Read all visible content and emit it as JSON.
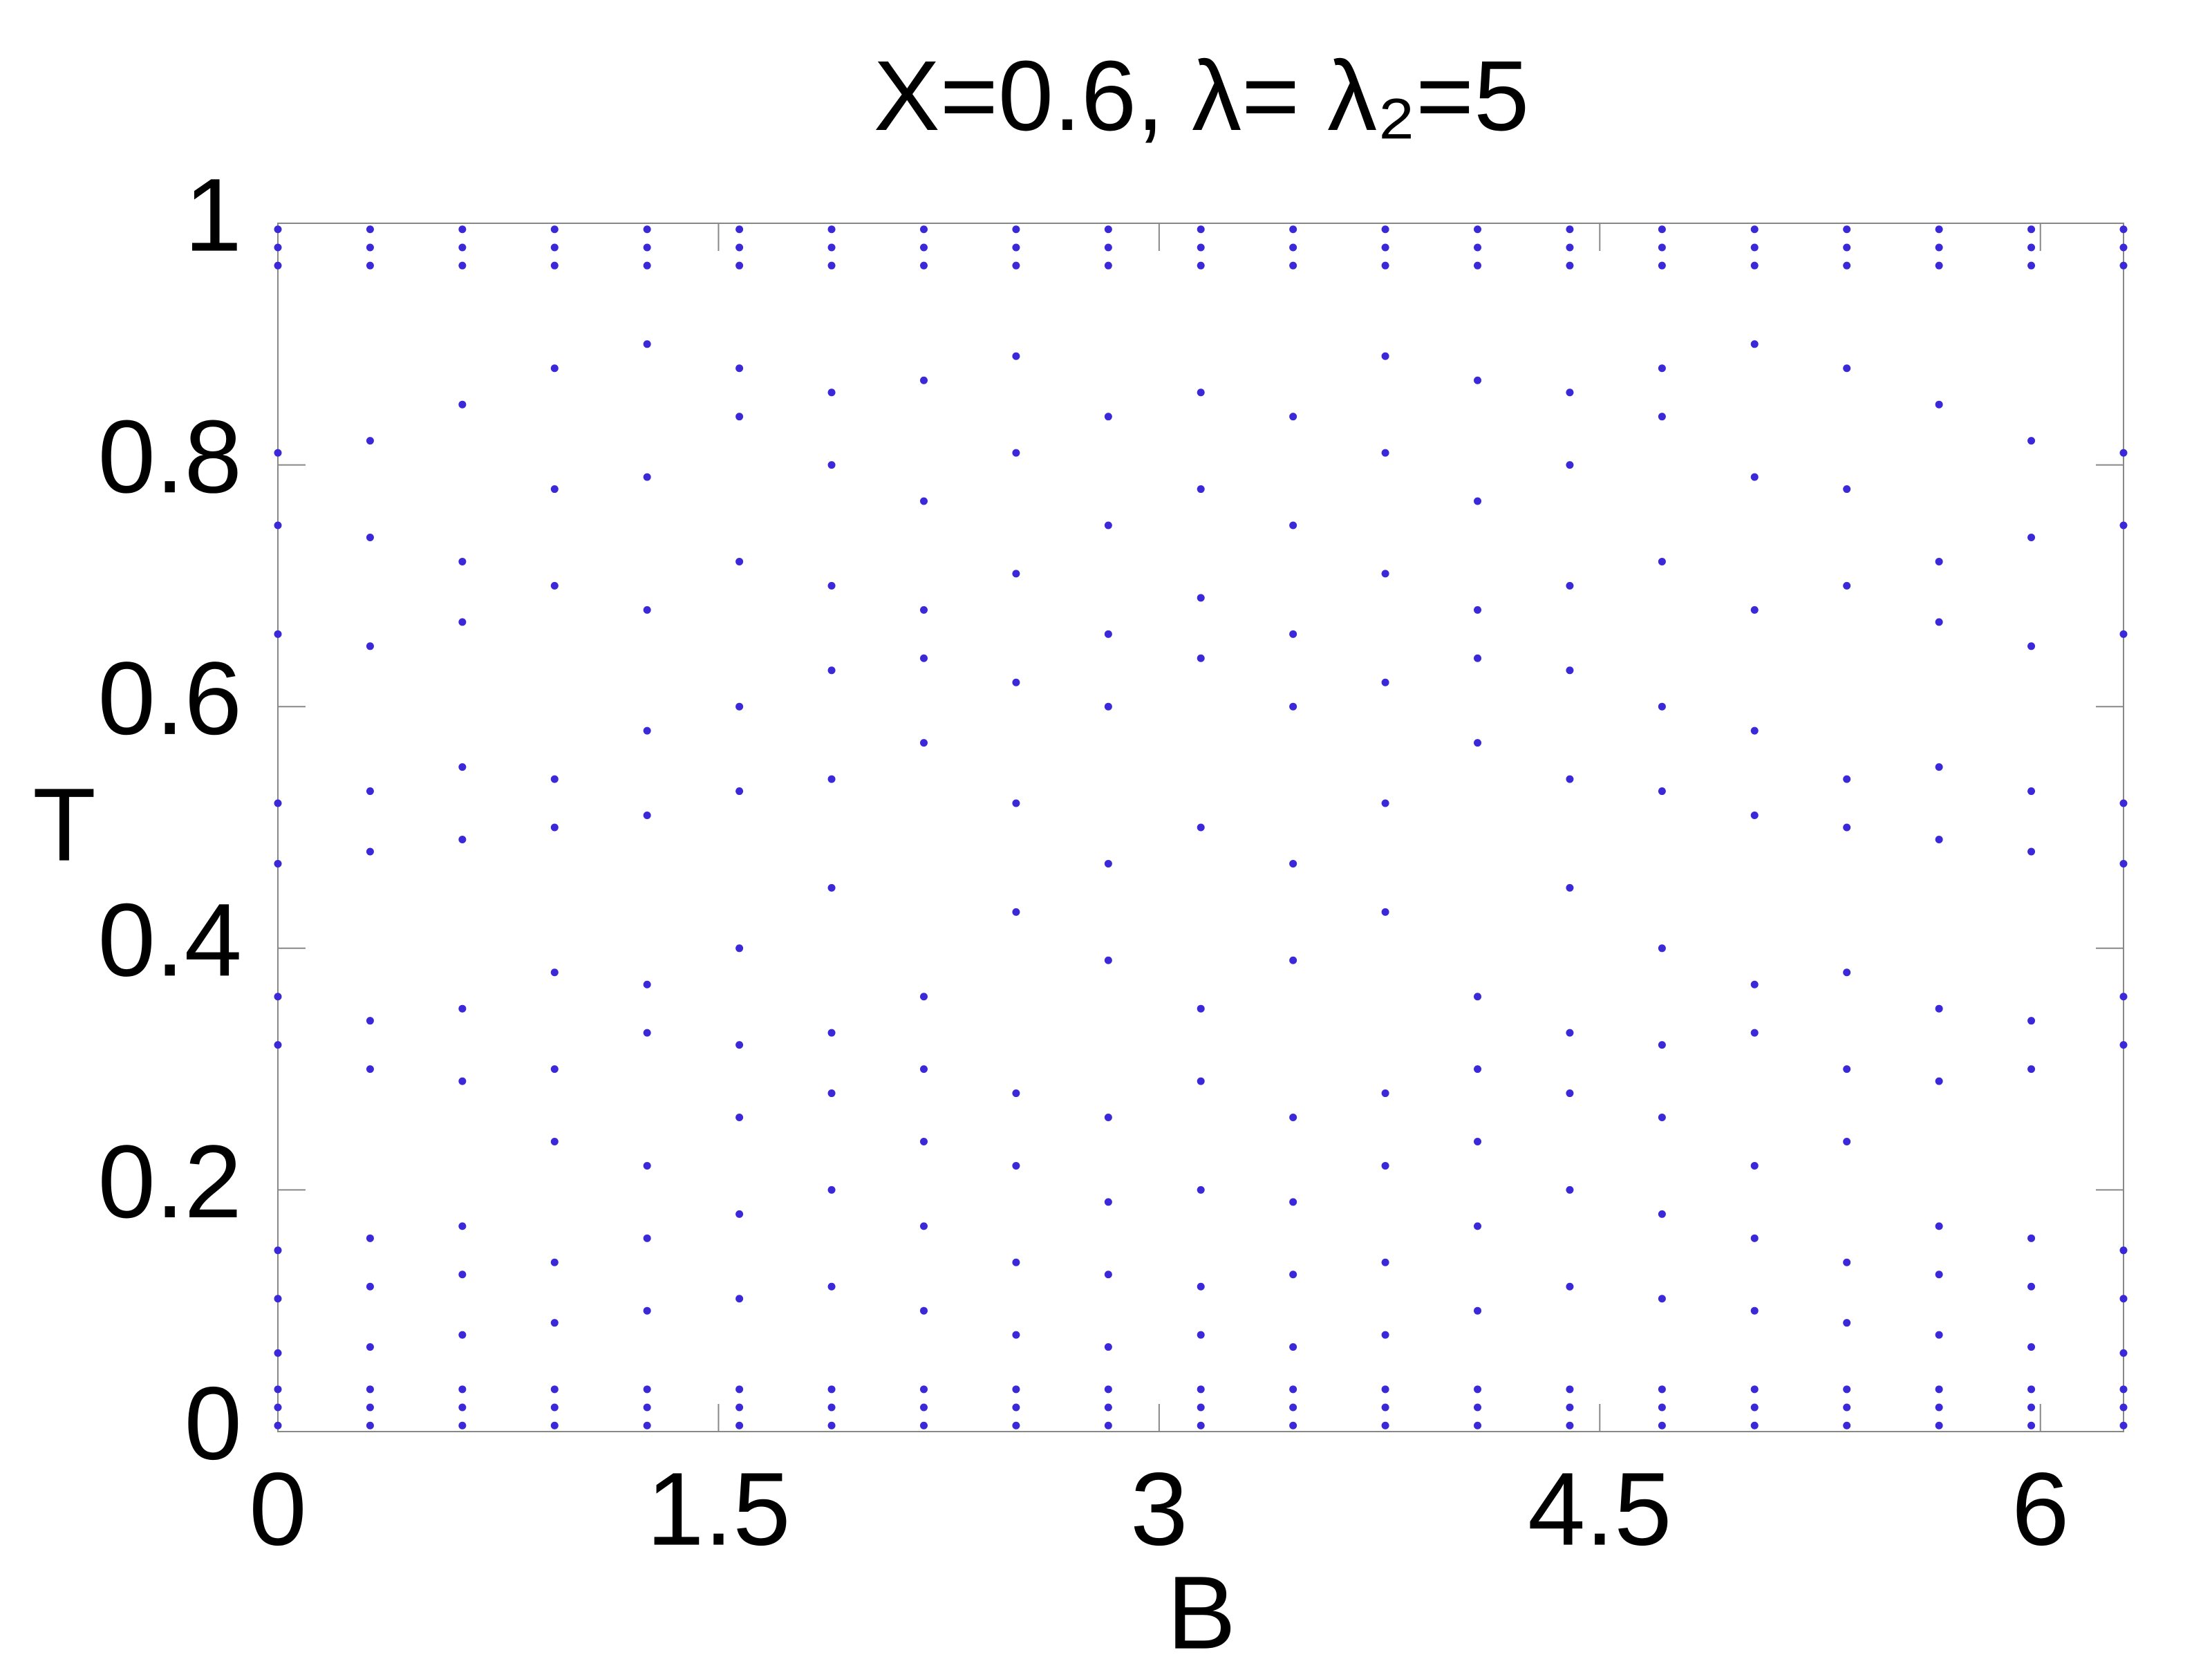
{
  "chart_data": {
    "type": "scatter",
    "title": "X=0.6, λ= λ₂=5",
    "x_label": "B",
    "y_label": "T",
    "color": "#3b28d9",
    "xlim": [
      0,
      6.283
    ],
    "ylim": [
      0,
      1
    ],
    "xticks": [
      0,
      1.5,
      3,
      4.5,
      6
    ],
    "yticks": [
      0,
      0.2,
      0.4,
      0.6,
      0.8,
      1
    ],
    "x": [
      0,
      0,
      0,
      0,
      0,
      0,
      0,
      0,
      0,
      0,
      0,
      0,
      0,
      0,
      0,
      0,
      0.314,
      0.314,
      0.314,
      0.314,
      0.314,
      0.314,
      0.314,
      0.314,
      0.314,
      0.314,
      0.314,
      0.314,
      0.314,
      0.314,
      0.314,
      0.314,
      0.628,
      0.628,
      0.628,
      0.628,
      0.628,
      0.628,
      0.628,
      0.628,
      0.628,
      0.628,
      0.628,
      0.628,
      0.628,
      0.628,
      0.628,
      0.628,
      0.942,
      0.942,
      0.942,
      0.942,
      0.942,
      0.942,
      0.942,
      0.942,
      0.942,
      0.942,
      0.942,
      0.942,
      0.942,
      0.942,
      0.942,
      0.942,
      1.257,
      1.257,
      1.257,
      1.257,
      1.257,
      1.257,
      1.257,
      1.257,
      1.257,
      1.257,
      1.257,
      1.257,
      1.257,
      1.257,
      1.257,
      1.257,
      1.571,
      1.571,
      1.571,
      1.571,
      1.571,
      1.571,
      1.571,
      1.571,
      1.571,
      1.571,
      1.571,
      1.571,
      1.571,
      1.571,
      1.571,
      1.571,
      1.885,
      1.885,
      1.885,
      1.885,
      1.885,
      1.885,
      1.885,
      1.885,
      1.885,
      1.885,
      1.885,
      1.885,
      1.885,
      1.885,
      1.885,
      1.885,
      2.199,
      2.199,
      2.199,
      2.199,
      2.199,
      2.199,
      2.199,
      2.199,
      2.199,
      2.199,
      2.199,
      2.199,
      2.199,
      2.199,
      2.199,
      2.199,
      2.513,
      2.513,
      2.513,
      2.513,
      2.513,
      2.513,
      2.513,
      2.513,
      2.513,
      2.513,
      2.513,
      2.513,
      2.513,
      2.513,
      2.513,
      2.513,
      2.827,
      2.827,
      2.827,
      2.827,
      2.827,
      2.827,
      2.827,
      2.827,
      2.827,
      2.827,
      2.827,
      2.827,
      2.827,
      2.827,
      2.827,
      2.827,
      3.142,
      3.142,
      3.142,
      3.142,
      3.142,
      3.142,
      3.142,
      3.142,
      3.142,
      3.142,
      3.142,
      3.142,
      3.142,
      3.142,
      3.142,
      3.142,
      3.456,
      3.456,
      3.456,
      3.456,
      3.456,
      3.456,
      3.456,
      3.456,
      3.456,
      3.456,
      3.456,
      3.456,
      3.456,
      3.456,
      3.456,
      3.456,
      3.77,
      3.77,
      3.77,
      3.77,
      3.77,
      3.77,
      3.77,
      3.77,
      3.77,
      3.77,
      3.77,
      3.77,
      3.77,
      3.77,
      3.77,
      3.77,
      4.084,
      4.084,
      4.084,
      4.084,
      4.084,
      4.084,
      4.084,
      4.084,
      4.084,
      4.084,
      4.084,
      4.084,
      4.084,
      4.084,
      4.084,
      4.084,
      4.398,
      4.398,
      4.398,
      4.398,
      4.398,
      4.398,
      4.398,
      4.398,
      4.398,
      4.398,
      4.398,
      4.398,
      4.398,
      4.398,
      4.398,
      4.398,
      4.712,
      4.712,
      4.712,
      4.712,
      4.712,
      4.712,
      4.712,
      4.712,
      4.712,
      4.712,
      4.712,
      4.712,
      4.712,
      4.712,
      4.712,
      4.712,
      5.027,
      5.027,
      5.027,
      5.027,
      5.027,
      5.027,
      5.027,
      5.027,
      5.027,
      5.027,
      5.027,
      5.027,
      5.027,
      5.027,
      5.027,
      5.027,
      5.341,
      5.341,
      5.341,
      5.341,
      5.341,
      5.341,
      5.341,
      5.341,
      5.341,
      5.341,
      5.341,
      5.341,
      5.341,
      5.341,
      5.341,
      5.341,
      5.655,
      5.655,
      5.655,
      5.655,
      5.655,
      5.655,
      5.655,
      5.655,
      5.655,
      5.655,
      5.655,
      5.655,
      5.655,
      5.655,
      5.655,
      5.655,
      5.969,
      5.969,
      5.969,
      5.969,
      5.969,
      5.969,
      5.969,
      5.969,
      5.969,
      5.969,
      5.969,
      5.969,
      5.969,
      5.969,
      5.969,
      5.969,
      6.283,
      6.283,
      6.283,
      6.283,
      6.283,
      6.283,
      6.283,
      6.283,
      6.283,
      6.283,
      6.283,
      6.283,
      6.283,
      6.283,
      6.283,
      6.283
    ],
    "values": [
      0.005,
      0.02,
      0.035,
      0.065,
      0.11,
      0.15,
      0.32,
      0.36,
      0.47,
      0.52,
      0.66,
      0.75,
      0.81,
      0.965,
      0.98,
      0.995,
      0.005,
      0.02,
      0.035,
      0.07,
      0.12,
      0.16,
      0.3,
      0.34,
      0.48,
      0.53,
      0.65,
      0.74,
      0.82,
      0.965,
      0.98,
      0.995,
      0.005,
      0.02,
      0.035,
      0.08,
      0.13,
      0.17,
      0.29,
      0.35,
      0.49,
      0.55,
      0.67,
      0.72,
      0.85,
      0.965,
      0.98,
      0.995,
      0.005,
      0.02,
      0.035,
      0.09,
      0.14,
      0.24,
      0.3,
      0.38,
      0.5,
      0.54,
      0.7,
      0.78,
      0.88,
      0.965,
      0.98,
      0.995,
      0.005,
      0.02,
      0.035,
      0.1,
      0.16,
      0.22,
      0.33,
      0.37,
      0.51,
      0.58,
      0.68,
      0.79,
      0.9,
      0.965,
      0.98,
      0.995,
      0.005,
      0.02,
      0.035,
      0.11,
      0.18,
      0.26,
      0.32,
      0.4,
      0.53,
      0.6,
      0.72,
      0.84,
      0.88,
      0.965,
      0.98,
      0.995,
      0.005,
      0.02,
      0.035,
      0.12,
      0.2,
      0.28,
      0.33,
      0.45,
      0.54,
      0.63,
      0.7,
      0.8,
      0.86,
      0.965,
      0.98,
      0.995,
      0.005,
      0.02,
      0.035,
      0.1,
      0.17,
      0.24,
      0.3,
      0.36,
      0.57,
      0.64,
      0.68,
      0.77,
      0.87,
      0.965,
      0.98,
      0.995,
      0.005,
      0.02,
      0.035,
      0.08,
      0.14,
      0.22,
      0.28,
      0.43,
      0.52,
      0.62,
      0.71,
      0.81,
      0.89,
      0.965,
      0.98,
      0.995,
      0.005,
      0.02,
      0.035,
      0.07,
      0.13,
      0.19,
      0.26,
      0.39,
      0.47,
      0.6,
      0.66,
      0.75,
      0.84,
      0.965,
      0.98,
      0.995,
      0.005,
      0.02,
      0.035,
      0.08,
      0.12,
      0.2,
      0.29,
      0.35,
      0.5,
      0.64,
      0.69,
      0.78,
      0.86,
      0.965,
      0.98,
      0.995,
      0.005,
      0.02,
      0.035,
      0.07,
      0.13,
      0.19,
      0.26,
      0.39,
      0.47,
      0.6,
      0.66,
      0.75,
      0.84,
      0.965,
      0.98,
      0.995,
      0.005,
      0.02,
      0.035,
      0.08,
      0.14,
      0.22,
      0.28,
      0.43,
      0.52,
      0.62,
      0.71,
      0.81,
      0.89,
      0.965,
      0.98,
      0.995,
      0.005,
      0.02,
      0.035,
      0.1,
      0.17,
      0.24,
      0.3,
      0.36,
      0.57,
      0.64,
      0.68,
      0.77,
      0.87,
      0.965,
      0.98,
      0.995,
      0.005,
      0.02,
      0.035,
      0.12,
      0.2,
      0.28,
      0.33,
      0.45,
      0.54,
      0.63,
      0.7,
      0.8,
      0.86,
      0.965,
      0.98,
      0.995,
      0.005,
      0.02,
      0.035,
      0.11,
      0.18,
      0.26,
      0.32,
      0.4,
      0.53,
      0.6,
      0.72,
      0.84,
      0.88,
      0.965,
      0.98,
      0.995,
      0.005,
      0.02,
      0.035,
      0.1,
      0.16,
      0.22,
      0.33,
      0.37,
      0.51,
      0.58,
      0.68,
      0.79,
      0.9,
      0.965,
      0.98,
      0.995,
      0.005,
      0.02,
      0.035,
      0.09,
      0.14,
      0.24,
      0.3,
      0.38,
      0.5,
      0.54,
      0.7,
      0.78,
      0.88,
      0.965,
      0.98,
      0.995,
      0.005,
      0.02,
      0.035,
      0.08,
      0.13,
      0.17,
      0.29,
      0.35,
      0.49,
      0.55,
      0.67,
      0.72,
      0.85,
      0.965,
      0.98,
      0.995,
      0.005,
      0.02,
      0.035,
      0.07,
      0.12,
      0.16,
      0.3,
      0.34,
      0.48,
      0.53,
      0.65,
      0.74,
      0.82,
      0.965,
      0.98,
      0.995,
      0.005,
      0.02,
      0.035,
      0.065,
      0.11,
      0.15,
      0.32,
      0.36,
      0.47,
      0.52,
      0.66,
      0.75,
      0.81,
      0.965,
      0.98,
      0.995
    ]
  }
}
